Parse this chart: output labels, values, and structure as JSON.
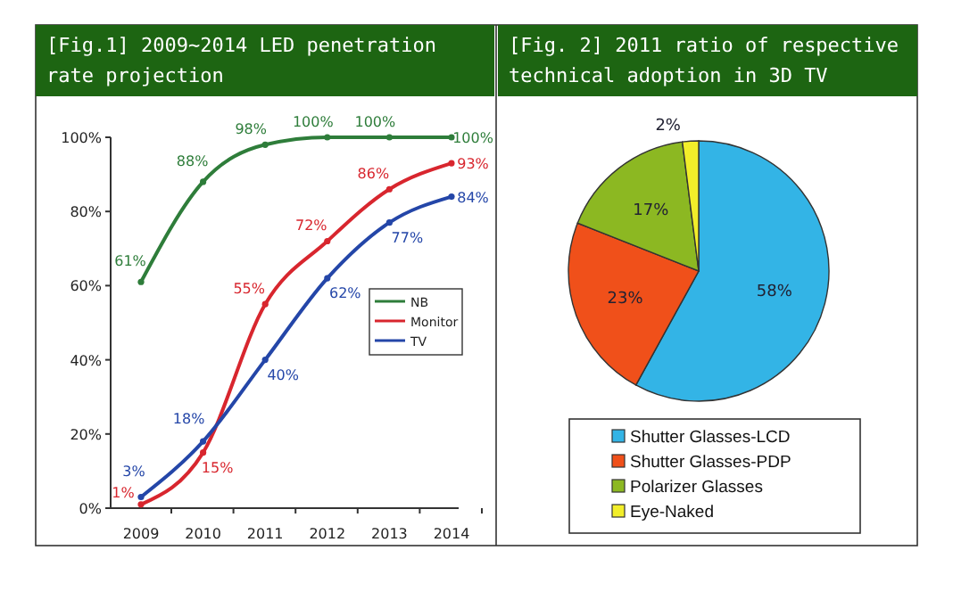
{
  "chart_data": [
    {
      "type": "line",
      "title": "[Fig.1] 2009~2014 LED penetration rate projection",
      "categories": [
        "2009",
        "2010",
        "2011",
        "2012",
        "2013",
        "2014"
      ],
      "series": [
        {
          "name": "NB",
          "color": "#2e7d3a",
          "values": [
            61,
            88,
            98,
            100,
            100,
            100
          ],
          "value_labels": [
            "61%",
            "88%",
            "98%",
            "100%",
            "100%",
            "100%"
          ]
        },
        {
          "name": "Monitor",
          "color": "#d8262e",
          "values": [
            1,
            15,
            55,
            72,
            86,
            93
          ],
          "value_labels": [
            "1%",
            "15%",
            "55%",
            "72%",
            "86%",
            "93%"
          ]
        },
        {
          "name": "TV",
          "color": "#2446a8",
          "values": [
            3,
            18,
            40,
            62,
            77,
            84
          ],
          "value_labels": [
            "3%",
            "18%",
            "40%",
            "62%",
            "77%",
            "84%"
          ]
        }
      ],
      "ylim": [
        0,
        100
      ],
      "yticks": [
        {
          "value": 0,
          "label": "0%"
        },
        {
          "value": 20,
          "label": "20%"
        },
        {
          "value": 40,
          "label": "40%"
        },
        {
          "value": 60,
          "label": "60%"
        },
        {
          "value": 80,
          "label": "80%"
        },
        {
          "value": 100,
          "label": "100%"
        }
      ],
      "legend": "right",
      "marker": "circle",
      "line_style": "solid",
      "grid": false
    },
    {
      "type": "pie",
      "title": "[Fig. 2] 2011 ratio of respective technical adoption in 3D TV",
      "categories": [
        "Shutter Glasses-LCD",
        "Shutter Glasses-PDP",
        "Polarizer Glasses",
        "Eye-Naked"
      ],
      "values": [
        58,
        23,
        17,
        2
      ],
      "value_labels": [
        "58%",
        "23%",
        "17%",
        "2%"
      ],
      "colors": [
        "#33b4e6",
        "#f0501a",
        "#8cb822",
        "#f2ee2a"
      ],
      "legend": "bottom"
    }
  ]
}
